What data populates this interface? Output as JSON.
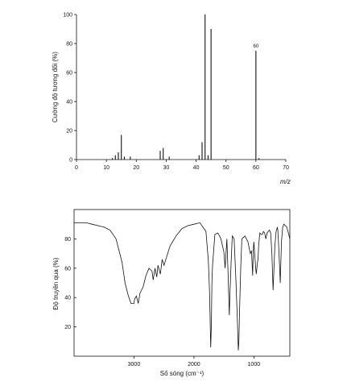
{
  "chart_data": [
    {
      "type": "bar",
      "title": "",
      "xlabel": "m/z",
      "ylabel": "Cường độ tương đối (%)",
      "xlim": [
        0,
        70
      ],
      "ylim": [
        0,
        100
      ],
      "xticks": [
        "0",
        "10",
        "20",
        "30",
        "40",
        "50",
        "60",
        "70"
      ],
      "yticks": [
        "0",
        "20",
        "40",
        "60",
        "80",
        "100"
      ],
      "x": [
        12,
        13,
        14,
        15,
        16,
        18,
        28,
        29,
        31,
        41,
        42,
        43,
        44,
        45,
        60,
        61
      ],
      "values": [
        1,
        3,
        5,
        17,
        2,
        2,
        6,
        8,
        2,
        3,
        12,
        100,
        3,
        90,
        75,
        1
      ],
      "annotations": [
        {
          "x": 60,
          "y": 75,
          "text": "60"
        }
      ],
      "grid": false
    },
    {
      "type": "line",
      "title": "",
      "xlabel": "Số sóng (cm⁻¹)",
      "ylabel": "Độ truyền qua (%)",
      "xlim": [
        4000,
        400
      ],
      "ylim": [
        0,
        100
      ],
      "xticks": [
        "3000",
        "2000",
        "1000"
      ],
      "yticks": [
        "20",
        "40",
        "60",
        "80"
      ],
      "grid": false,
      "series": [
        {
          "x": [
            4000,
            3900,
            3800,
            3700,
            3600,
            3500,
            3400,
            3300,
            3200,
            3150,
            3100,
            3050,
            3000,
            2990,
            2960,
            2930,
            2900,
            2850,
            2800,
            2750,
            2700,
            2680,
            2650,
            2620,
            2600,
            2560,
            2530,
            2500,
            2400,
            2300,
            2200,
            2100,
            2000,
            1900,
            1800,
            1760,
            1740,
            1730,
            1720,
            1710,
            1700,
            1690,
            1650,
            1600,
            1550,
            1500,
            1480,
            1450,
            1430,
            1410,
            1400,
            1380,
            1360,
            1330,
            1300,
            1280,
            1260,
            1250,
            1240,
            1220,
            1200,
            1150,
            1100,
            1060,
            1040,
            1020,
            1010,
            1000,
            970,
            960,
            940,
            930,
            920,
            900,
            880,
            860,
            840,
            820,
            800,
            780,
            760,
            740,
            720,
            700,
            680,
            650,
            630,
            620,
            610,
            600,
            580,
            560,
            540,
            520,
            500,
            450,
            400
          ],
          "y": [
            91,
            91,
            91,
            90,
            89,
            88,
            86,
            80,
            64,
            50,
            42,
            36,
            36,
            39,
            41,
            36,
            43,
            47,
            55,
            60,
            58,
            52,
            60,
            54,
            62,
            56,
            66,
            62,
            75,
            82,
            87,
            89,
            90,
            91,
            85,
            65,
            45,
            25,
            6,
            20,
            50,
            62,
            83,
            84,
            80,
            71,
            60,
            80,
            56,
            28,
            42,
            63,
            82,
            80,
            52,
            30,
            4,
            10,
            30,
            60,
            80,
            82,
            78,
            70,
            72,
            55,
            72,
            78,
            60,
            56,
            64,
            66,
            76,
            84,
            83,
            83,
            85,
            84,
            80,
            84,
            85,
            86,
            84,
            70,
            45,
            75,
            85,
            86,
            88,
            86,
            70,
            50,
            78,
            88,
            90,
            88,
            80
          ]
        }
      ]
    }
  ]
}
